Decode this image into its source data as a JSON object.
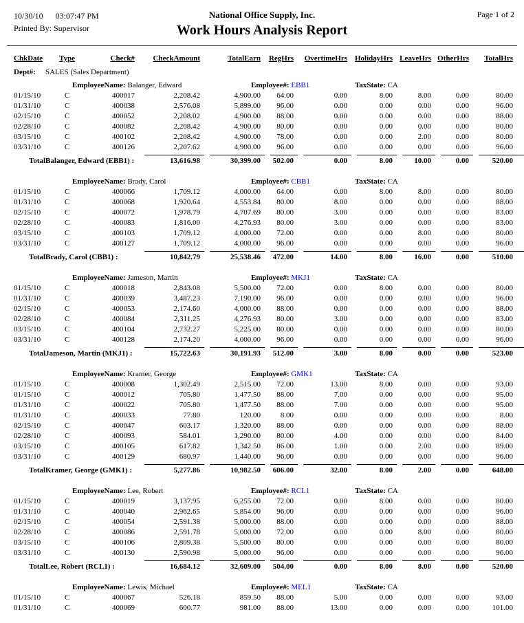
{
  "header": {
    "date": "10/30/10",
    "time": "03:07:47 PM",
    "printed_by": "Printed By: Supervisor",
    "company": "National Office Supply, Inc.",
    "title": "Work Hours Analysis Report",
    "page": "Page 1 of 2"
  },
  "columns": [
    "ChkDate",
    "Type",
    "Check#",
    "CheckAmount",
    "TotalEarn",
    "RegHrs",
    "OvertimeHrs",
    "HolidayHrs",
    "LeaveHrs",
    "OtherHrs",
    "TotalHrs"
  ],
  "dept": {
    "label": "Dept#:",
    "value": "SALES (Sales Department)"
  },
  "labels": {
    "employee_name": "EmployeeName:",
    "employee_num": "Employee#:",
    "tax_state": "TaxState:"
  },
  "accent_colors": {
    "employee_code_blue": "#0000EE"
  },
  "employees": [
    {
      "name": "Balanger, Edward",
      "code": "EBB1",
      "tax_state": "CA",
      "rows": [
        [
          "01/15/10",
          "C",
          "400017",
          "2,208.42",
          "4,900.00",
          "64.00",
          "0.00",
          "8.00",
          "8.00",
          "0.00",
          "80.00"
        ],
        [
          "01/31/10",
          "C",
          "400038",
          "2,576.08",
          "5,899.00",
          "96.00",
          "0.00",
          "0.00",
          "0.00",
          "0.00",
          "96.00"
        ],
        [
          "02/15/10",
          "C",
          "400052",
          "2,208.02",
          "4,900.00",
          "88.00",
          "0.00",
          "0.00",
          "0.00",
          "0.00",
          "88.00"
        ],
        [
          "02/28/10",
          "C",
          "400082",
          "2,208.42",
          "4,900.00",
          "80.00",
          "0.00",
          "0.00",
          "0.00",
          "0.00",
          "80.00"
        ],
        [
          "03/15/10",
          "C",
          "400102",
          "2,208.42",
          "4,900.00",
          "78.00",
          "0.00",
          "0.00",
          "2.00",
          "0.00",
          "80.00"
        ],
        [
          "03/31/10",
          "C",
          "400126",
          "2,207.62",
          "4,900.00",
          "96.00",
          "0.00",
          "0.00",
          "0.00",
          "0.00",
          "96.00"
        ]
      ],
      "total_label": "TotalBalanger, Edward (EBB1) :",
      "totals": [
        "13,616.98",
        "30,399.00",
        "502.00",
        "0.00",
        "8.00",
        "10.00",
        "0.00",
        "520.00"
      ]
    },
    {
      "name": "Brady, Carol",
      "code": "CBB1",
      "tax_state": "CA",
      "rows": [
        [
          "01/15/10",
          "C",
          "400066",
          "1,709.12",
          "4,000.00",
          "64.00",
          "0.00",
          "8.00",
          "8.00",
          "0.00",
          "80.00"
        ],
        [
          "01/31/10",
          "C",
          "400068",
          "1,920.64",
          "4,553.84",
          "80.00",
          "8.00",
          "0.00",
          "0.00",
          "0.00",
          "88.00"
        ],
        [
          "02/15/10",
          "C",
          "400072",
          "1,978.79",
          "4,707.69",
          "80.00",
          "3.00",
          "0.00",
          "0.00",
          "0.00",
          "83.00"
        ],
        [
          "02/28/10",
          "C",
          "400083",
          "1,816.00",
          "4,276.93",
          "80.00",
          "3.00",
          "0.00",
          "0.00",
          "0.00",
          "83.00"
        ],
        [
          "03/15/10",
          "C",
          "400103",
          "1,709.12",
          "4,000.00",
          "72.00",
          "0.00",
          "0.00",
          "8.00",
          "0.00",
          "80.00"
        ],
        [
          "03/31/10",
          "C",
          "400127",
          "1,709.12",
          "4,000.00",
          "96.00",
          "0.00",
          "0.00",
          "0.00",
          "0.00",
          "96.00"
        ]
      ],
      "total_label": "TotalBrady, Carol (CBB1) :",
      "totals": [
        "10,842.79",
        "25,538.46",
        "472.00",
        "14.00",
        "8.00",
        "16.00",
        "0.00",
        "510.00"
      ]
    },
    {
      "name": "Jameson, Martin",
      "code": "MKJ1",
      "tax_state": "CA",
      "rows": [
        [
          "01/15/10",
          "C",
          "400018",
          "2,843.08",
          "5,500.00",
          "72.00",
          "0.00",
          "8.00",
          "0.00",
          "0.00",
          "80.00"
        ],
        [
          "01/31/10",
          "C",
          "400039",
          "3,487.23",
          "7,190.00",
          "96.00",
          "0.00",
          "0.00",
          "0.00",
          "0.00",
          "96.00"
        ],
        [
          "02/15/10",
          "C",
          "400053",
          "2,174.60",
          "4,000.00",
          "88.00",
          "0.00",
          "0.00",
          "0.00",
          "0.00",
          "88.00"
        ],
        [
          "02/28/10",
          "C",
          "400084",
          "2,311.25",
          "4,276.93",
          "80.00",
          "3.00",
          "0.00",
          "0.00",
          "0.00",
          "83.00"
        ],
        [
          "03/15/10",
          "C",
          "400104",
          "2,732.27",
          "5,225.00",
          "80.00",
          "0.00",
          "0.00",
          "0.00",
          "0.00",
          "80.00"
        ],
        [
          "03/31/10",
          "C",
          "400128",
          "2,174.20",
          "4,000.00",
          "96.00",
          "0.00",
          "0.00",
          "0.00",
          "0.00",
          "96.00"
        ]
      ],
      "total_label": "TotalJameson, Martin (MKJ1) :",
      "totals": [
        "15,722.63",
        "30,191.93",
        "512.00",
        "3.00",
        "8.00",
        "0.00",
        "0.00",
        "523.00"
      ]
    },
    {
      "name": "Kramer, George",
      "code": "GMK1",
      "tax_state": "CA",
      "rows": [
        [
          "01/15/10",
          "C",
          "400008",
          "1,302.49",
          "2,515.00",
          "72.00",
          "13.00",
          "8.00",
          "0.00",
          "0.00",
          "93.00"
        ],
        [
          "01/15/10",
          "C",
          "400012",
          "705.80",
          "1,477.50",
          "88.00",
          "7.00",
          "0.00",
          "0.00",
          "0.00",
          "95.00"
        ],
        [
          "01/31/10",
          "C",
          "400022",
          "705.80",
          "1,477.50",
          "88.00",
          "7.00",
          "0.00",
          "0.00",
          "0.00",
          "95.00"
        ],
        [
          "01/31/10",
          "C",
          "400033",
          "77.80",
          "120.00",
          "8.00",
          "0.00",
          "0.00",
          "0.00",
          "0.00",
          "8.00"
        ],
        [
          "02/15/10",
          "C",
          "400047",
          "603.17",
          "1,320.00",
          "88.00",
          "0.00",
          "0.00",
          "0.00",
          "0.00",
          "88.00"
        ],
        [
          "02/28/10",
          "C",
          "400093",
          "584.01",
          "1,290.00",
          "80.00",
          "4.00",
          "0.00",
          "0.00",
          "0.00",
          "84.00"
        ],
        [
          "03/15/10",
          "C",
          "400105",
          "617.82",
          "1,342.50",
          "86.00",
          "1.00",
          "0.00",
          "2.00",
          "0.00",
          "89.00"
        ],
        [
          "03/31/10",
          "C",
          "400129",
          "680.97",
          "1,440.00",
          "96.00",
          "0.00",
          "0.00",
          "0.00",
          "0.00",
          "96.00"
        ]
      ],
      "total_label": "TotalKramer, George (GMK1) :",
      "totals": [
        "5,277.86",
        "10,982.50",
        "606.00",
        "32.00",
        "8.00",
        "2.00",
        "0.00",
        "648.00"
      ]
    },
    {
      "name": "Lee, Robert",
      "code": "RCL1",
      "tax_state": "CA",
      "rows": [
        [
          "01/15/10",
          "C",
          "400019",
          "3,137.95",
          "6,255.00",
          "72.00",
          "0.00",
          "8.00",
          "0.00",
          "0.00",
          "80.00"
        ],
        [
          "01/31/10",
          "C",
          "400040",
          "2,962.65",
          "5,854.00",
          "96.00",
          "0.00",
          "0.00",
          "0.00",
          "0.00",
          "96.00"
        ],
        [
          "02/15/10",
          "C",
          "400054",
          "2,591.38",
          "5,000.00",
          "88.00",
          "0.00",
          "0.00",
          "0.00",
          "0.00",
          "88.00"
        ],
        [
          "02/28/10",
          "C",
          "400086",
          "2,591.78",
          "5,000.00",
          "72.00",
          "0.00",
          "0.00",
          "8.00",
          "0.00",
          "80.00"
        ],
        [
          "03/15/10",
          "C",
          "400106",
          "2,809.38",
          "5,500.00",
          "80.00",
          "0.00",
          "0.00",
          "0.00",
          "0.00",
          "80.00"
        ],
        [
          "03/31/10",
          "C",
          "400130",
          "2,590.98",
          "5,000.00",
          "96.00",
          "0.00",
          "0.00",
          "0.00",
          "0.00",
          "96.00"
        ]
      ],
      "total_label": "TotalLee, Robert (RCL1) :",
      "totals": [
        "16,684.12",
        "32,609.00",
        "504.00",
        "0.00",
        "8.00",
        "8.00",
        "0.00",
        "520.00"
      ]
    },
    {
      "name": "Lewis, Michael",
      "code": "MEL1",
      "tax_state": "CA",
      "rows": [
        [
          "01/15/10",
          "C",
          "400067",
          "526.18",
          "859.50",
          "88.00",
          "5.00",
          "0.00",
          "0.00",
          "0.00",
          "93.00"
        ],
        [
          "01/31/10",
          "C",
          "400069",
          "600.77",
          "981.00",
          "88.00",
          "13.00",
          "0.00",
          "0.00",
          "0.00",
          "101.00"
        ]
      ],
      "total_label": null,
      "totals": null
    }
  ]
}
